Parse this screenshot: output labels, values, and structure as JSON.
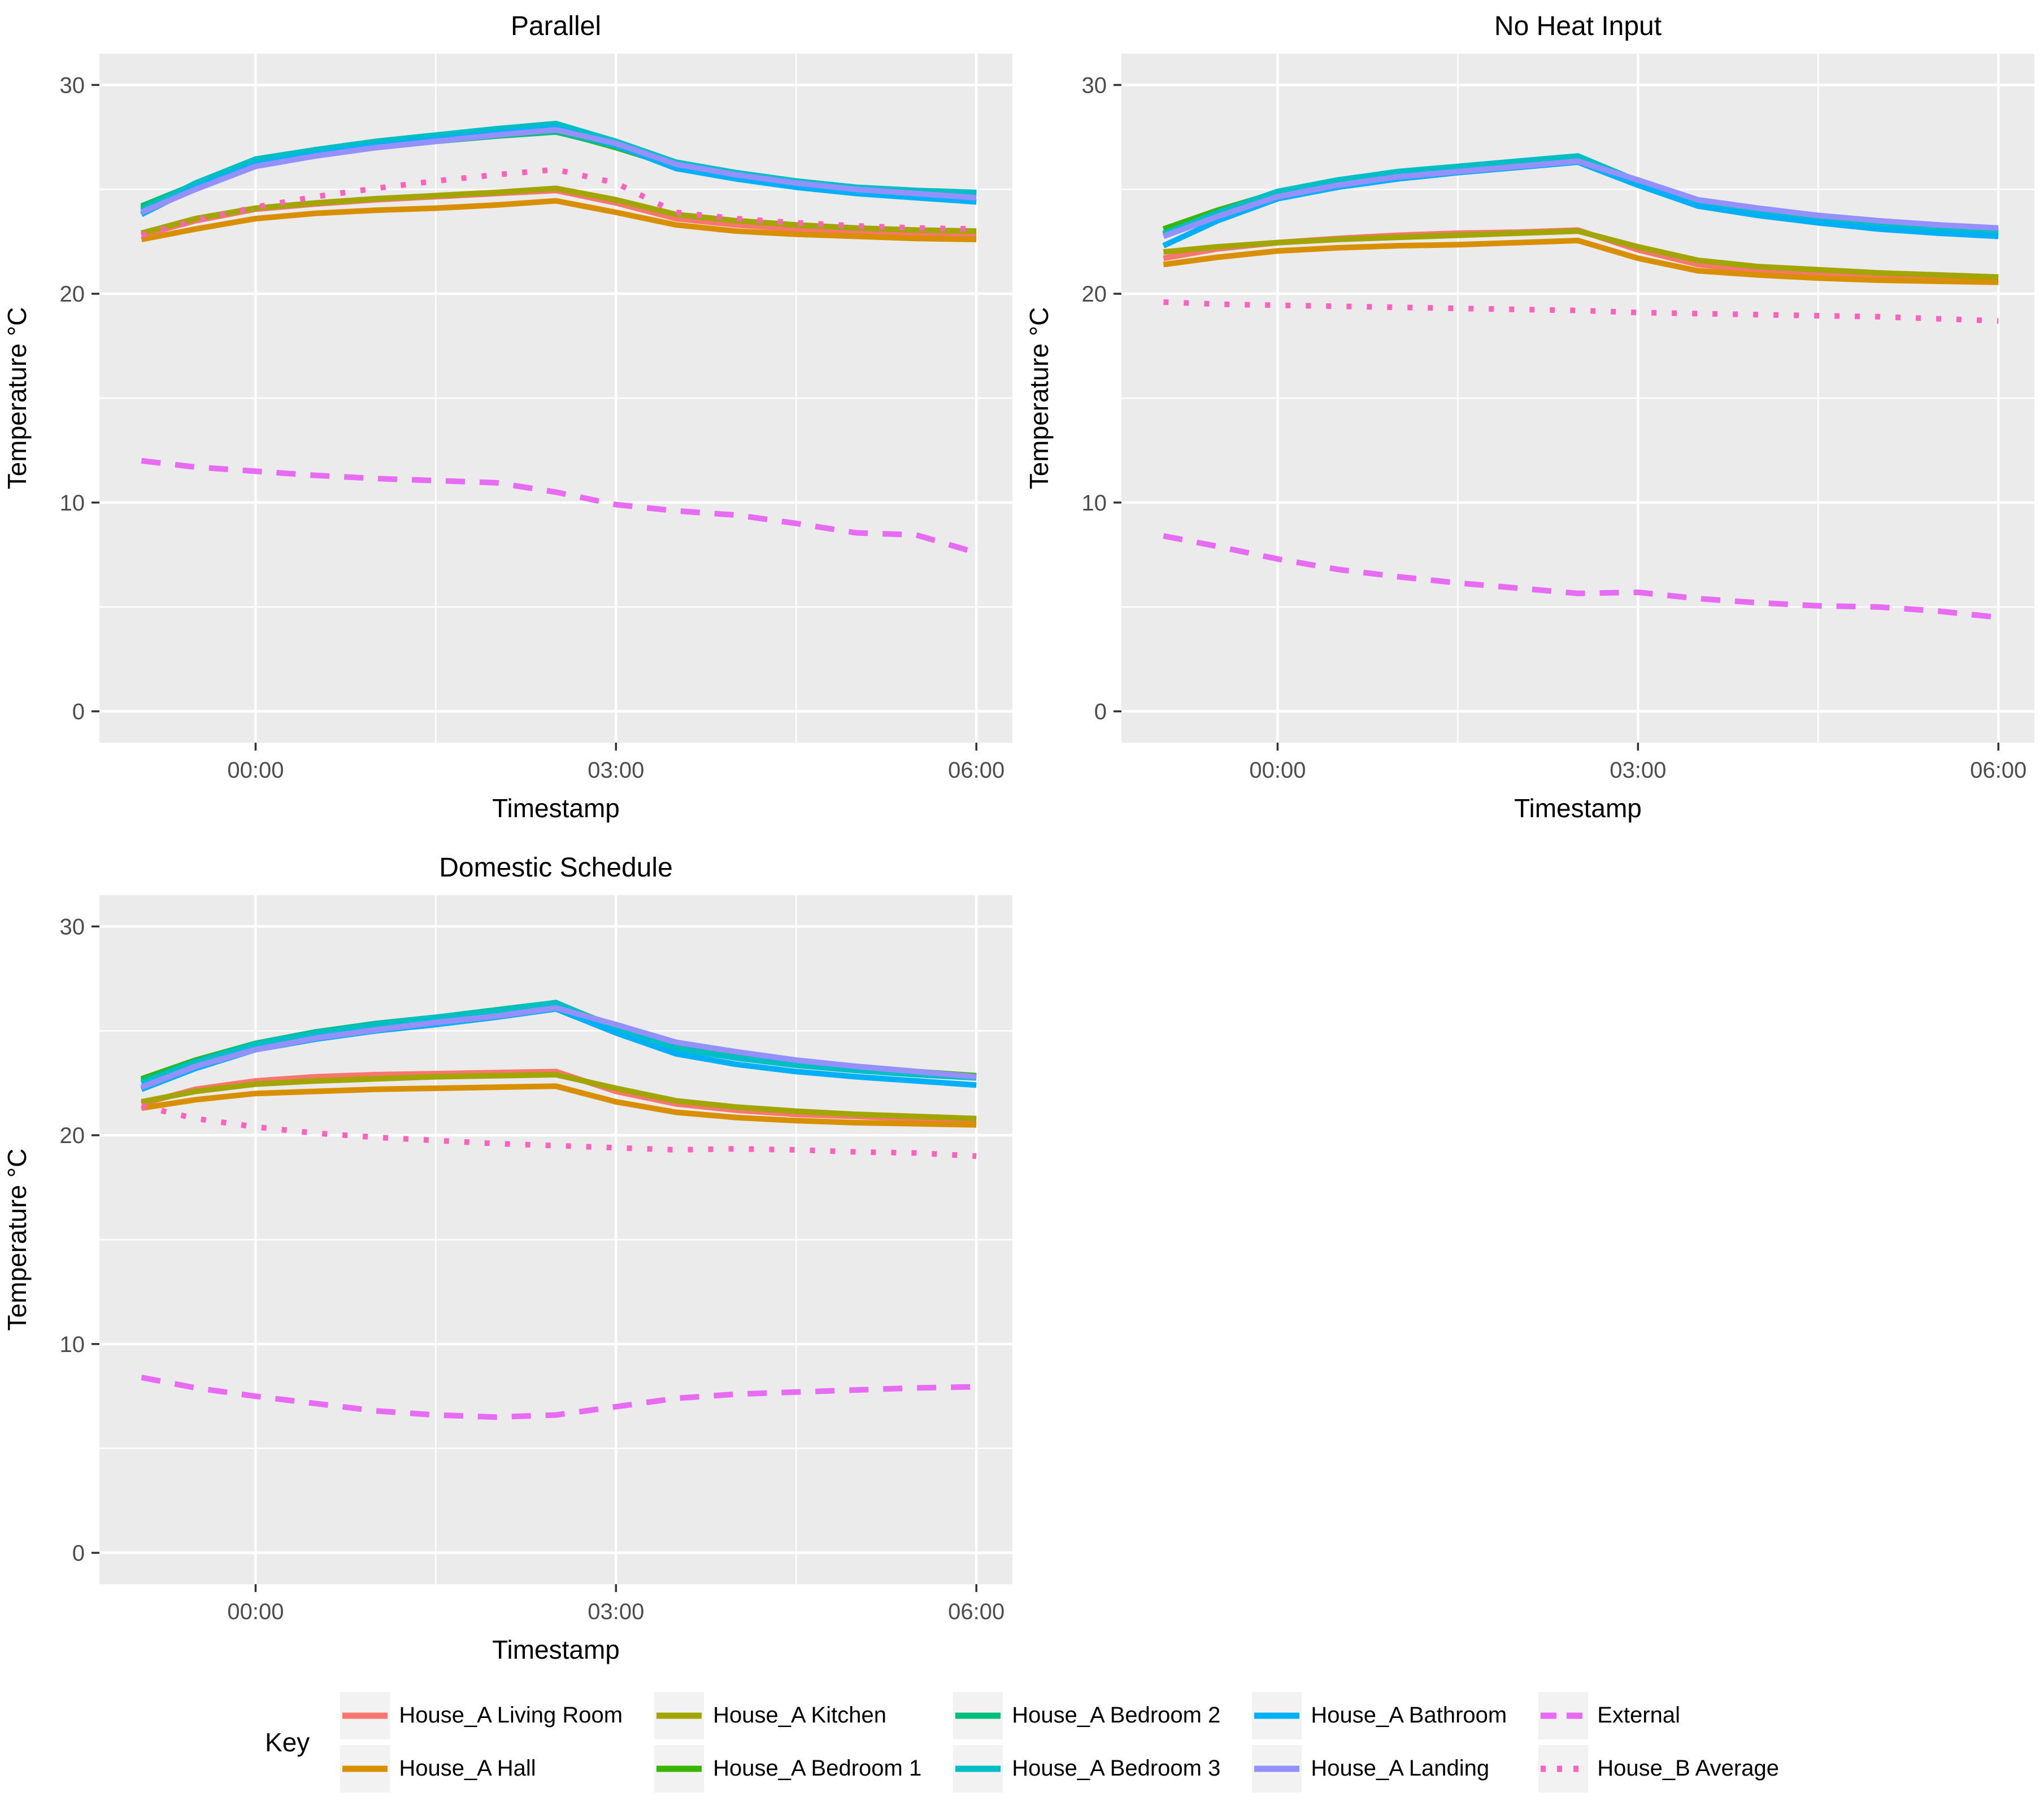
{
  "figure": {
    "background": "#FFFFFF",
    "panel_background": "#EBEBEB",
    "grid_color": "#FFFFFF",
    "tick_color": "#333333",
    "tick_text_color": "#4D4D4D",
    "title_color": "#000000"
  },
  "axes": {
    "x_title": "Timestamp",
    "y_title": "Temperature °C",
    "x_domain_hours": [
      -1.3,
      6.3
    ],
    "y_domain": [
      -1.5,
      31.5
    ],
    "x_ticks": [
      {
        "h": 0,
        "label": "00:00"
      },
      {
        "h": 3,
        "label": "03:00"
      },
      {
        "h": 6,
        "label": "06:00"
      }
    ],
    "x_minor": [
      1.5,
      4.5
    ],
    "y_ticks": [
      {
        "v": 0,
        "label": "0"
      },
      {
        "v": 10,
        "label": "10"
      },
      {
        "v": 20,
        "label": "20"
      },
      {
        "v": 30,
        "label": "30"
      }
    ],
    "y_minor": [
      5,
      15,
      25
    ]
  },
  "legend": {
    "label": "Key",
    "items": [
      {
        "label": "House_A Living Room",
        "color": "#F8766D",
        "dash": "solid"
      },
      {
        "label": "House_A Hall",
        "color": "#D89000",
        "dash": "solid"
      },
      {
        "label": "House_A Kitchen",
        "color": "#A3A500",
        "dash": "solid"
      },
      {
        "label": "House_A Bedroom 1",
        "color": "#39B600",
        "dash": "solid"
      },
      {
        "label": "House_A Bedroom 2",
        "color": "#00BF7D",
        "dash": "solid"
      },
      {
        "label": "House_A Bedroom 3",
        "color": "#00BFC4",
        "dash": "solid"
      },
      {
        "label": "House_A Bathroom",
        "color": "#00B0F6",
        "dash": "solid"
      },
      {
        "label": "House_A Landing",
        "color": "#9590FF",
        "dash": "solid"
      },
      {
        "label": "External",
        "color": "#E76BF3",
        "dash": "dashed"
      },
      {
        "label": "House_B Average",
        "color": "#FF62BC",
        "dash": "dotted"
      }
    ]
  },
  "chart_data": [
    {
      "type": "line",
      "title": "Parallel",
      "xlabel": "Timestamp",
      "ylabel": "Temperature °C",
      "x_hours": [
        -0.95,
        -0.5,
        0,
        0.5,
        1,
        1.5,
        2,
        2.5,
        3,
        3.5,
        4,
        4.5,
        5,
        5.5,
        6
      ],
      "x_tick_labels": [
        "00:00",
        "03:00",
        "06:00"
      ],
      "ylim": [
        0,
        30
      ],
      "grid": true,
      "series": [
        {
          "name": "House_A Living Room",
          "values": [
            22.8,
            23.5,
            24.05,
            24.3,
            24.5,
            24.65,
            24.8,
            24.95,
            24.35,
            23.6,
            23.3,
            23.1,
            22.95,
            22.9,
            22.85
          ]
        },
        {
          "name": "House_A Hall",
          "values": [
            22.6,
            23.1,
            23.6,
            23.85,
            24.0,
            24.1,
            24.25,
            24.45,
            23.9,
            23.3,
            23.0,
            22.85,
            22.75,
            22.65,
            22.6
          ]
        },
        {
          "name": "House_A Kitchen",
          "values": [
            22.9,
            23.6,
            24.1,
            24.35,
            24.55,
            24.7,
            24.85,
            25.05,
            24.5,
            23.8,
            23.5,
            23.3,
            23.15,
            23.05,
            23.0
          ]
        },
        {
          "name": "House_A Bedroom 1",
          "values": [
            24.1,
            25.2,
            26.3,
            26.7,
            27.05,
            27.35,
            27.6,
            27.8,
            27.0,
            26.1,
            25.6,
            25.2,
            24.95,
            24.85,
            24.8
          ]
        },
        {
          "name": "House_A Bedroom 2",
          "values": [
            24.2,
            25.25,
            26.25,
            26.65,
            27.0,
            27.3,
            27.55,
            27.75,
            27.05,
            26.15,
            25.65,
            25.25,
            25.0,
            24.9,
            24.8
          ]
        },
        {
          "name": "House_A Bedroom 3",
          "values": [
            24.0,
            25.3,
            26.45,
            26.9,
            27.3,
            27.6,
            27.9,
            28.15,
            27.3,
            26.3,
            25.8,
            25.4,
            25.1,
            24.95,
            24.85
          ]
        },
        {
          "name": "House_A Bathroom",
          "values": [
            23.8,
            25.1,
            26.2,
            26.7,
            27.1,
            27.4,
            27.7,
            27.95,
            27.1,
            26.0,
            25.5,
            25.1,
            24.8,
            24.6,
            24.4
          ]
        },
        {
          "name": "House_A Landing",
          "values": [
            23.9,
            25.0,
            26.1,
            26.6,
            27.0,
            27.3,
            27.6,
            27.85,
            27.2,
            26.2,
            25.7,
            25.3,
            25.0,
            24.8,
            24.6
          ]
        },
        {
          "name": "External",
          "values": [
            12.0,
            11.7,
            11.5,
            11.3,
            11.15,
            11.05,
            10.95,
            10.5,
            9.9,
            9.6,
            9.4,
            9.0,
            8.55,
            8.45,
            7.6
          ]
        },
        {
          "name": "House_B Average",
          "values": [
            22.8,
            23.5,
            24.15,
            24.65,
            25.05,
            25.4,
            25.7,
            25.95,
            25.3,
            23.9,
            23.6,
            23.4,
            23.25,
            23.15,
            23.1
          ]
        }
      ]
    },
    {
      "type": "line",
      "title": "No Heat Input",
      "xlabel": "Timestamp",
      "ylabel": "Temperature °C",
      "x_hours": [
        -0.95,
        -0.5,
        0,
        0.5,
        1,
        1.5,
        2,
        2.5,
        3,
        3.5,
        4,
        4.5,
        5,
        5.5,
        6
      ],
      "x_tick_labels": [
        "00:00",
        "03:00",
        "06:00"
      ],
      "ylim": [
        0,
        30
      ],
      "grid": true,
      "series": [
        {
          "name": "House_A Living Room",
          "values": [
            21.7,
            22.15,
            22.45,
            22.65,
            22.8,
            22.9,
            22.95,
            23.05,
            22.1,
            21.4,
            21.1,
            20.95,
            20.85,
            20.75,
            20.7
          ]
        },
        {
          "name": "House_A Hall",
          "values": [
            21.4,
            21.75,
            22.05,
            22.2,
            22.3,
            22.35,
            22.45,
            22.55,
            21.7,
            21.1,
            20.9,
            20.75,
            20.65,
            20.6,
            20.55
          ]
        },
        {
          "name": "House_A Kitchen",
          "values": [
            22.0,
            22.25,
            22.45,
            22.6,
            22.7,
            22.8,
            22.9,
            23.0,
            22.25,
            21.6,
            21.3,
            21.15,
            21.0,
            20.9,
            20.8
          ]
        },
        {
          "name": "House_A Bedroom 1",
          "values": [
            23.1,
            24.0,
            24.85,
            25.35,
            25.7,
            25.95,
            26.2,
            26.45,
            25.35,
            24.35,
            23.9,
            23.55,
            23.3,
            23.1,
            22.95
          ]
        },
        {
          "name": "House_A Bedroom 2",
          "values": [
            22.9,
            23.85,
            24.75,
            25.25,
            25.6,
            25.85,
            26.1,
            26.35,
            25.3,
            24.3,
            23.85,
            23.5,
            23.25,
            23.05,
            22.9
          ]
        },
        {
          "name": "House_A Bedroom 3",
          "values": [
            22.85,
            23.9,
            24.9,
            25.45,
            25.85,
            26.1,
            26.35,
            26.6,
            25.4,
            24.4,
            23.95,
            23.6,
            23.35,
            23.15,
            23.0
          ]
        },
        {
          "name": "House_A Bathroom",
          "values": [
            22.3,
            23.5,
            24.55,
            25.1,
            25.5,
            25.8,
            26.05,
            26.3,
            25.2,
            24.2,
            23.75,
            23.4,
            23.1,
            22.9,
            22.75
          ]
        },
        {
          "name": "House_A Landing",
          "values": [
            22.75,
            23.7,
            24.65,
            25.2,
            25.6,
            25.85,
            26.1,
            26.35,
            25.45,
            24.5,
            24.1,
            23.75,
            23.5,
            23.3,
            23.15
          ]
        },
        {
          "name": "External",
          "values": [
            8.4,
            7.9,
            7.3,
            6.8,
            6.45,
            6.15,
            5.9,
            5.65,
            5.7,
            5.4,
            5.2,
            5.05,
            5.0,
            4.8,
            4.5
          ]
        },
        {
          "name": "House_B Average",
          "values": [
            19.6,
            19.5,
            19.45,
            19.4,
            19.35,
            19.3,
            19.25,
            19.2,
            19.1,
            19.05,
            19.0,
            18.95,
            18.9,
            18.8,
            18.7
          ]
        }
      ]
    },
    {
      "type": "line",
      "title": "Domestic Schedule",
      "xlabel": "Timestamp",
      "ylabel": "Temperature °C",
      "x_hours": [
        -0.95,
        -0.5,
        0,
        0.5,
        1,
        1.5,
        2,
        2.5,
        3,
        3.5,
        4,
        4.5,
        5,
        5.5,
        6
      ],
      "x_tick_labels": [
        "00:00",
        "03:00",
        "06:00"
      ],
      "ylim": [
        0,
        30
      ],
      "grid": true,
      "series": [
        {
          "name": "House_A Living Room",
          "values": [
            21.5,
            22.2,
            22.6,
            22.8,
            22.9,
            22.95,
            23.0,
            23.05,
            22.1,
            21.5,
            21.2,
            21.0,
            20.9,
            20.8,
            20.75
          ]
        },
        {
          "name": "House_A Hall",
          "values": [
            21.3,
            21.7,
            22.0,
            22.1,
            22.2,
            22.25,
            22.3,
            22.35,
            21.6,
            21.1,
            20.85,
            20.7,
            20.6,
            20.55,
            20.5
          ]
        },
        {
          "name": "House_A Kitchen",
          "values": [
            21.6,
            22.1,
            22.45,
            22.6,
            22.7,
            22.8,
            22.85,
            22.9,
            22.25,
            21.65,
            21.35,
            21.15,
            21.0,
            20.9,
            20.8
          ]
        },
        {
          "name": "House_A Bedroom 1",
          "values": [
            22.7,
            23.6,
            24.4,
            24.9,
            25.3,
            25.6,
            25.95,
            26.3,
            25.2,
            24.3,
            23.9,
            23.55,
            23.3,
            23.05,
            22.85
          ]
        },
        {
          "name": "House_A Bedroom 2",
          "values": [
            22.6,
            23.55,
            24.4,
            24.95,
            25.35,
            25.65,
            26.0,
            26.35,
            25.15,
            24.25,
            23.85,
            23.5,
            23.25,
            23.0,
            22.8
          ]
        },
        {
          "name": "House_A Bedroom 3",
          "values": [
            22.5,
            23.5,
            24.35,
            24.9,
            25.3,
            25.65,
            25.95,
            26.35,
            25.1,
            24.15,
            23.7,
            23.35,
            23.1,
            22.9,
            22.75
          ]
        },
        {
          "name": "House_A Bathroom",
          "values": [
            22.2,
            23.2,
            24.1,
            24.6,
            25.0,
            25.3,
            25.65,
            26.05,
            24.9,
            23.9,
            23.4,
            23.05,
            22.8,
            22.6,
            22.4
          ]
        },
        {
          "name": "House_A Landing",
          "values": [
            22.3,
            23.3,
            24.1,
            24.65,
            25.05,
            25.4,
            25.7,
            26.1,
            25.3,
            24.45,
            24.0,
            23.6,
            23.3,
            23.05,
            22.8
          ]
        },
        {
          "name": "External",
          "values": [
            8.4,
            7.9,
            7.5,
            7.15,
            6.8,
            6.6,
            6.5,
            6.6,
            7.0,
            7.4,
            7.6,
            7.7,
            7.8,
            7.9,
            7.95
          ]
        },
        {
          "name": "House_B Average",
          "values": [
            21.4,
            20.8,
            20.4,
            20.1,
            19.9,
            19.75,
            19.6,
            19.5,
            19.4,
            19.3,
            19.35,
            19.3,
            19.2,
            19.15,
            19.0
          ]
        }
      ]
    }
  ]
}
